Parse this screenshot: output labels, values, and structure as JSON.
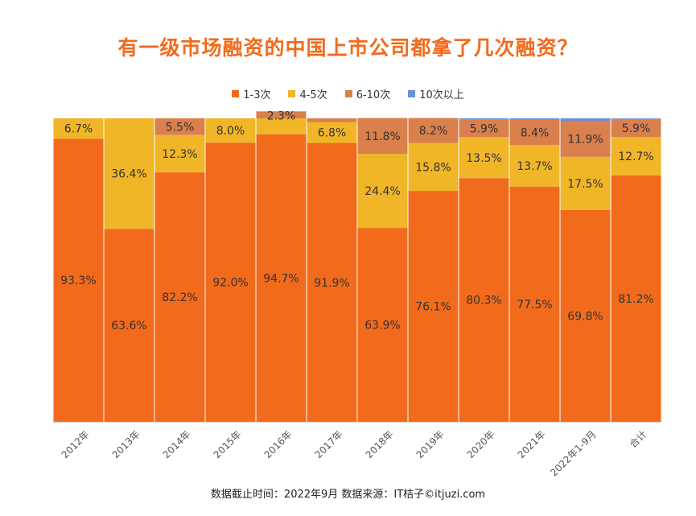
{
  "chart_data": {
    "type": "bar",
    "stacked": true,
    "percent_stacked": true,
    "title": "有一级市场融资的中国上市公司都拿了几次融资？",
    "legend_position": "top",
    "grid": false,
    "ylim": [
      0,
      100
    ],
    "categories": [
      "2012年",
      "2013年",
      "2014年",
      "2015年",
      "2016年",
      "2017年",
      "2018年",
      "2019年",
      "2020年",
      "2021年",
      "2022年1-9月",
      "合计"
    ],
    "series": [
      {
        "name": "1-3次",
        "color": "#f26b1d",
        "values": [
          93.3,
          63.6,
          82.2,
          92.0,
          94.7,
          91.9,
          63.9,
          76.1,
          80.3,
          77.5,
          69.8,
          81.2
        ],
        "labels": [
          "93.3%",
          "63.6%",
          "82.2%",
          "92.0%",
          "94.7%",
          "91.9%",
          "63.9%",
          "76.1%",
          "80.3%",
          "77.5%",
          "69.8%",
          "81.2%"
        ]
      },
      {
        "name": "4-5次",
        "color": "#f0b627",
        "values": [
          6.7,
          36.4,
          12.3,
          8.0,
          5.3,
          6.8,
          24.4,
          15.8,
          13.5,
          13.7,
          17.5,
          12.7
        ],
        "labels": [
          "6.7%",
          "36.4%",
          "12.3%",
          "8.0%",
          "",
          "6.8%",
          "24.4%",
          "15.8%",
          "13.5%",
          "13.7%",
          "17.5%",
          "12.7%"
        ]
      },
      {
        "name": "6-10次",
        "color": "#d9804d",
        "values": [
          0,
          0,
          5.5,
          0,
          2.3,
          1.3,
          11.8,
          8.2,
          5.9,
          8.4,
          11.9,
          5.9
        ],
        "labels": [
          "",
          "",
          "5.5%",
          "",
          "2.3%",
          "",
          "11.8%",
          "8.2%",
          "5.9%",
          "8.4%",
          "11.9%",
          "5.9%"
        ]
      },
      {
        "name": "10次以上",
        "color": "#6b8fd6",
        "values": [
          0,
          0,
          0,
          0,
          0,
          0,
          0,
          0,
          0.3,
          0.4,
          0.8,
          0.2
        ],
        "labels": [
          "",
          "",
          "",
          "",
          "",
          "",
          "",
          "",
          "",
          "",
          "",
          ""
        ]
      }
    ]
  },
  "footer": {
    "source": "数据截止时间：2022年9月 数据来源：IT桔子©itjuzi.com"
  }
}
